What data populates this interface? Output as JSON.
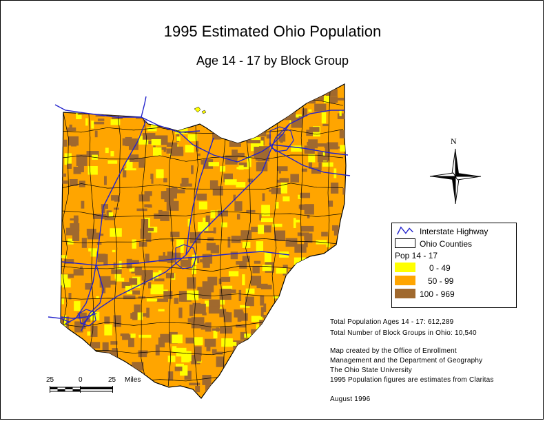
{
  "title": "1995 Estimated Ohio Population",
  "subtitle": "Age 14 - 17 by Block Group",
  "north_label": "N",
  "legend": {
    "highway_label": "Interstate Highway",
    "counties_label": "Ohio Counties",
    "pop_header": "Pop 14 - 17",
    "classes": [
      {
        "label": "0 -   49",
        "color": "#ffff00"
      },
      {
        "label": "50 -   99",
        "color": "#ffa500"
      },
      {
        "label": "100 - 969",
        "color": "#a0692e"
      }
    ],
    "highway_color": "#2222cc"
  },
  "info": {
    "total_pop": "Total Population Ages 14 - 17: 612,289",
    "total_groups": "Total Number of Block Groups in Ohio: 10,540",
    "credit_1": "Map created by the Office of Enrollment",
    "credit_2": "Management  and the Department of Geography",
    "credit_3": "The Ohio State University",
    "credit_4": "1995 Population figures are estimates from Claritas",
    "date": "August 1996"
  },
  "scale": {
    "left": "25",
    "center": "0",
    "right": "25",
    "unit": "Miles"
  },
  "colors": {
    "state_fill": "#ffa500",
    "high": "#a0692e",
    "low": "#ffff00",
    "county_line": "#000000",
    "highway": "#2222cc"
  }
}
